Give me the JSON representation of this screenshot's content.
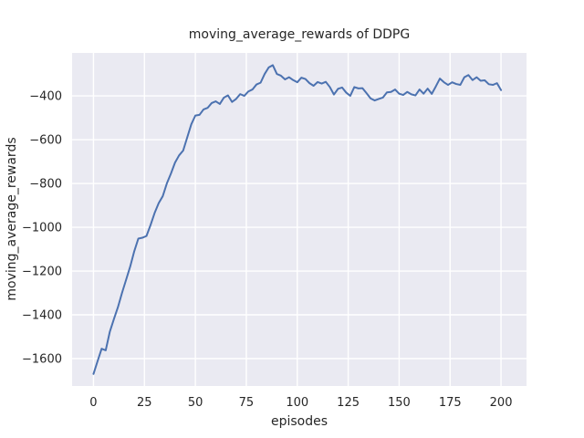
{
  "chart_data": {
    "type": "line",
    "title": "moving_average_rewards of DDPG",
    "xlabel": "episodes",
    "ylabel": "moving_average_rewards",
    "x": [
      0,
      2,
      4,
      6,
      8,
      10,
      12,
      14,
      16,
      18,
      20,
      22,
      24,
      26,
      28,
      30,
      32,
      34,
      36,
      38,
      40,
      42,
      44,
      46,
      48,
      50,
      52,
      54,
      56,
      58,
      60,
      62,
      64,
      66,
      68,
      70,
      72,
      74,
      76,
      78,
      80,
      82,
      84,
      86,
      88,
      90,
      92,
      94,
      96,
      98,
      100,
      102,
      104,
      106,
      108,
      110,
      112,
      114,
      116,
      118,
      120,
      122,
      124,
      126,
      128,
      130,
      132,
      134,
      136,
      138,
      140,
      142,
      144,
      146,
      148,
      150,
      152,
      154,
      156,
      158,
      160,
      162,
      164,
      166,
      168,
      170,
      172,
      174,
      176,
      178,
      180,
      182,
      184,
      186,
      188,
      190,
      192,
      194,
      196,
      198,
      200
    ],
    "values": [
      -1670,
      -1612,
      -1555,
      -1562,
      -1478,
      -1420,
      -1365,
      -1300,
      -1240,
      -1180,
      -1110,
      -1052,
      -1048,
      -1040,
      -990,
      -935,
      -890,
      -858,
      -800,
      -755,
      -705,
      -672,
      -650,
      -590,
      -530,
      -490,
      -487,
      -462,
      -455,
      -433,
      -425,
      -437,
      -408,
      -398,
      -428,
      -414,
      -392,
      -400,
      -380,
      -371,
      -348,
      -340,
      -300,
      -270,
      -260,
      -300,
      -308,
      -325,
      -315,
      -328,
      -338,
      -317,
      -323,
      -342,
      -354,
      -337,
      -344,
      -336,
      -360,
      -394,
      -368,
      -362,
      -385,
      -400,
      -360,
      -366,
      -365,
      -388,
      -412,
      -421,
      -414,
      -408,
      -384,
      -382,
      -371,
      -390,
      -396,
      -382,
      -393,
      -398,
      -371,
      -390,
      -367,
      -391,
      -357,
      -321,
      -338,
      -350,
      -338,
      -346,
      -350,
      -315,
      -305,
      -328,
      -315,
      -331,
      -329,
      -347,
      -350,
      -342,
      -374
    ],
    "xticks": [
      0,
      25,
      50,
      75,
      100,
      125,
      150,
      175,
      200
    ],
    "yticks": [
      -400,
      -600,
      -800,
      -1000,
      -1200,
      -1400,
      -1600
    ],
    "xlim": [
      -10.5,
      212.5
    ],
    "ylim": [
      -1725,
      -204
    ],
    "grid": true,
    "legend_position": "none",
    "style": {
      "line_color": "#4c72b0",
      "plot_bg": "#eaeaf2",
      "grid_color": "#ffffff",
      "text_color": "#262626",
      "figure_bg": "#ffffff"
    }
  }
}
